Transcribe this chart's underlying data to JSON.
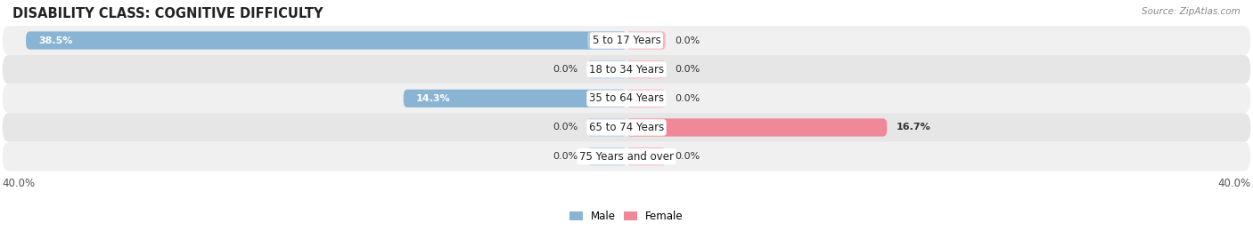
{
  "title": "DISABILITY CLASS: COGNITIVE DIFFICULTY",
  "source": "Source: ZipAtlas.com",
  "categories": [
    "5 to 17 Years",
    "18 to 34 Years",
    "35 to 64 Years",
    "65 to 74 Years",
    "75 Years and over"
  ],
  "male_values": [
    38.5,
    0.0,
    14.3,
    0.0,
    0.0
  ],
  "female_values": [
    0.0,
    0.0,
    0.0,
    16.7,
    0.0
  ],
  "male_color": "#8ab4d4",
  "female_color": "#f08898",
  "male_stub_color": "#b8d0e8",
  "female_stub_color": "#f5b8c0",
  "row_bg_odd": "#f0f0f0",
  "row_bg_even": "#e6e6e6",
  "max_val": 40.0,
  "stub_size": 2.5,
  "bar_height": 0.62,
  "label_fontsize": 8.5,
  "value_fontsize": 8.0,
  "title_fontsize": 10.5,
  "source_fontsize": 7.5,
  "axis_label_fontsize": 8.5,
  "background_color": "#ffffff",
  "title_color": "#222222",
  "value_color_dark": "#333333",
  "value_color_white": "#ffffff"
}
